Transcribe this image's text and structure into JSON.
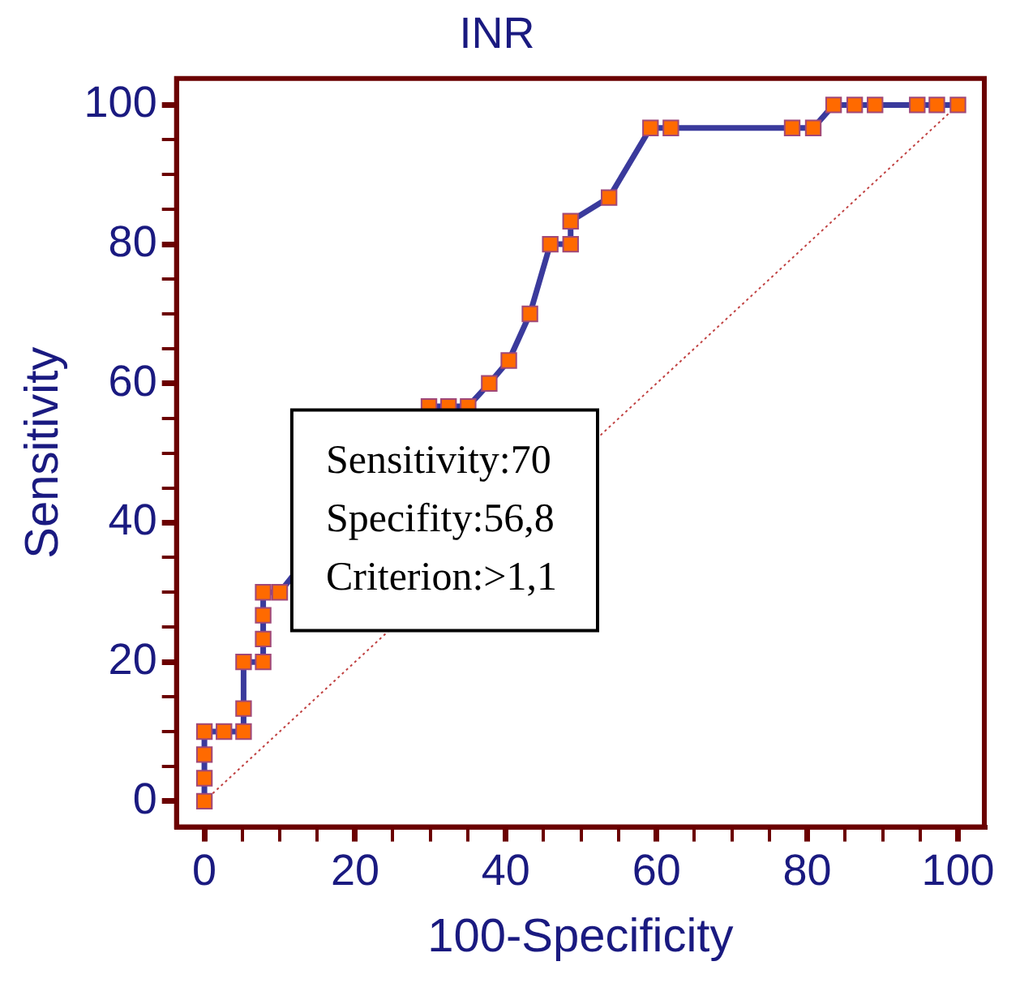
{
  "chart_data": {
    "type": "line",
    "title": "INR",
    "xlabel": "100-Specificity",
    "ylabel": "Sensitivity",
    "xlim": [
      -3.7,
      103.5
    ],
    "ylim": [
      -3.7,
      103.8
    ],
    "xticks": [
      0,
      {
        "value": 5,
        "label": null
      },
      {
        "value": 10,
        "label": null
      },
      {
        "value": 15,
        "label": null
      },
      20,
      {
        "value": 25,
        "label": null
      },
      {
        "value": 30,
        "label": null
      },
      {
        "value": 35,
        "label": null
      },
      40,
      {
        "value": 45,
        "label": null
      },
      {
        "value": 50,
        "label": null
      },
      {
        "value": 55,
        "label": null
      },
      60,
      {
        "value": 65,
        "label": null
      },
      {
        "value": 70,
        "label": null
      },
      {
        "value": 75,
        "label": null
      },
      80,
      {
        "value": 85,
        "label": null
      },
      {
        "value": 90,
        "label": null
      },
      {
        "value": 95,
        "label": null
      },
      100
    ],
    "yticks": [
      0,
      {
        "value": 5,
        "label": null
      },
      {
        "value": 10,
        "label": null
      },
      {
        "value": 15,
        "label": null
      },
      20,
      {
        "value": 25,
        "label": null
      },
      {
        "value": 30,
        "label": null
      },
      {
        "value": 35,
        "label": null
      },
      40,
      {
        "value": 45,
        "label": null
      },
      {
        "value": 50,
        "label": null
      },
      {
        "value": 55,
        "label": null
      },
      60,
      {
        "value": 65,
        "label": null
      },
      {
        "value": 70,
        "label": null
      },
      {
        "value": 75,
        "label": null
      },
      80,
      {
        "value": 85,
        "label": null
      },
      {
        "value": 90,
        "label": null
      },
      {
        "value": 95,
        "label": null
      },
      100
    ],
    "grid": false,
    "legend": false,
    "series": [
      {
        "color": "#3a3a9c",
        "marker": "square",
        "line_style": "solid",
        "x": [
          0,
          0,
          0,
          0,
          2.6,
          5.2,
          5.2,
          5.2,
          7.8,
          7.8,
          7.8,
          7.8,
          10,
          29.8,
          32.4,
          35,
          37.8,
          40.4,
          43.2,
          45.9,
          48.6,
          48.6,
          53.7,
          59.2,
          61.9,
          78,
          80.8,
          83.5,
          86.3,
          89,
          94.6,
          97.2,
          100
        ],
        "values": [
          0,
          3.3,
          6.7,
          10,
          10,
          10,
          13.3,
          20,
          20,
          23.3,
          26.7,
          30,
          30,
          56.7,
          56.7,
          56.7,
          60,
          63.3,
          70,
          80,
          80,
          83.3,
          86.7,
          96.7,
          96.7,
          96.7,
          96.7,
          100,
          100,
          100,
          100,
          100,
          100
        ]
      },
      {
        "type": "line",
        "color": "#c04040",
        "marker": "none",
        "line_style": "dotted",
        "x": [
          0,
          100
        ],
        "values": [
          0,
          100
        ]
      }
    ],
    "annotations": [
      "Sensitivity:70",
      "Specifity:56,8",
      "Criterion:>1,1"
    ]
  }
}
